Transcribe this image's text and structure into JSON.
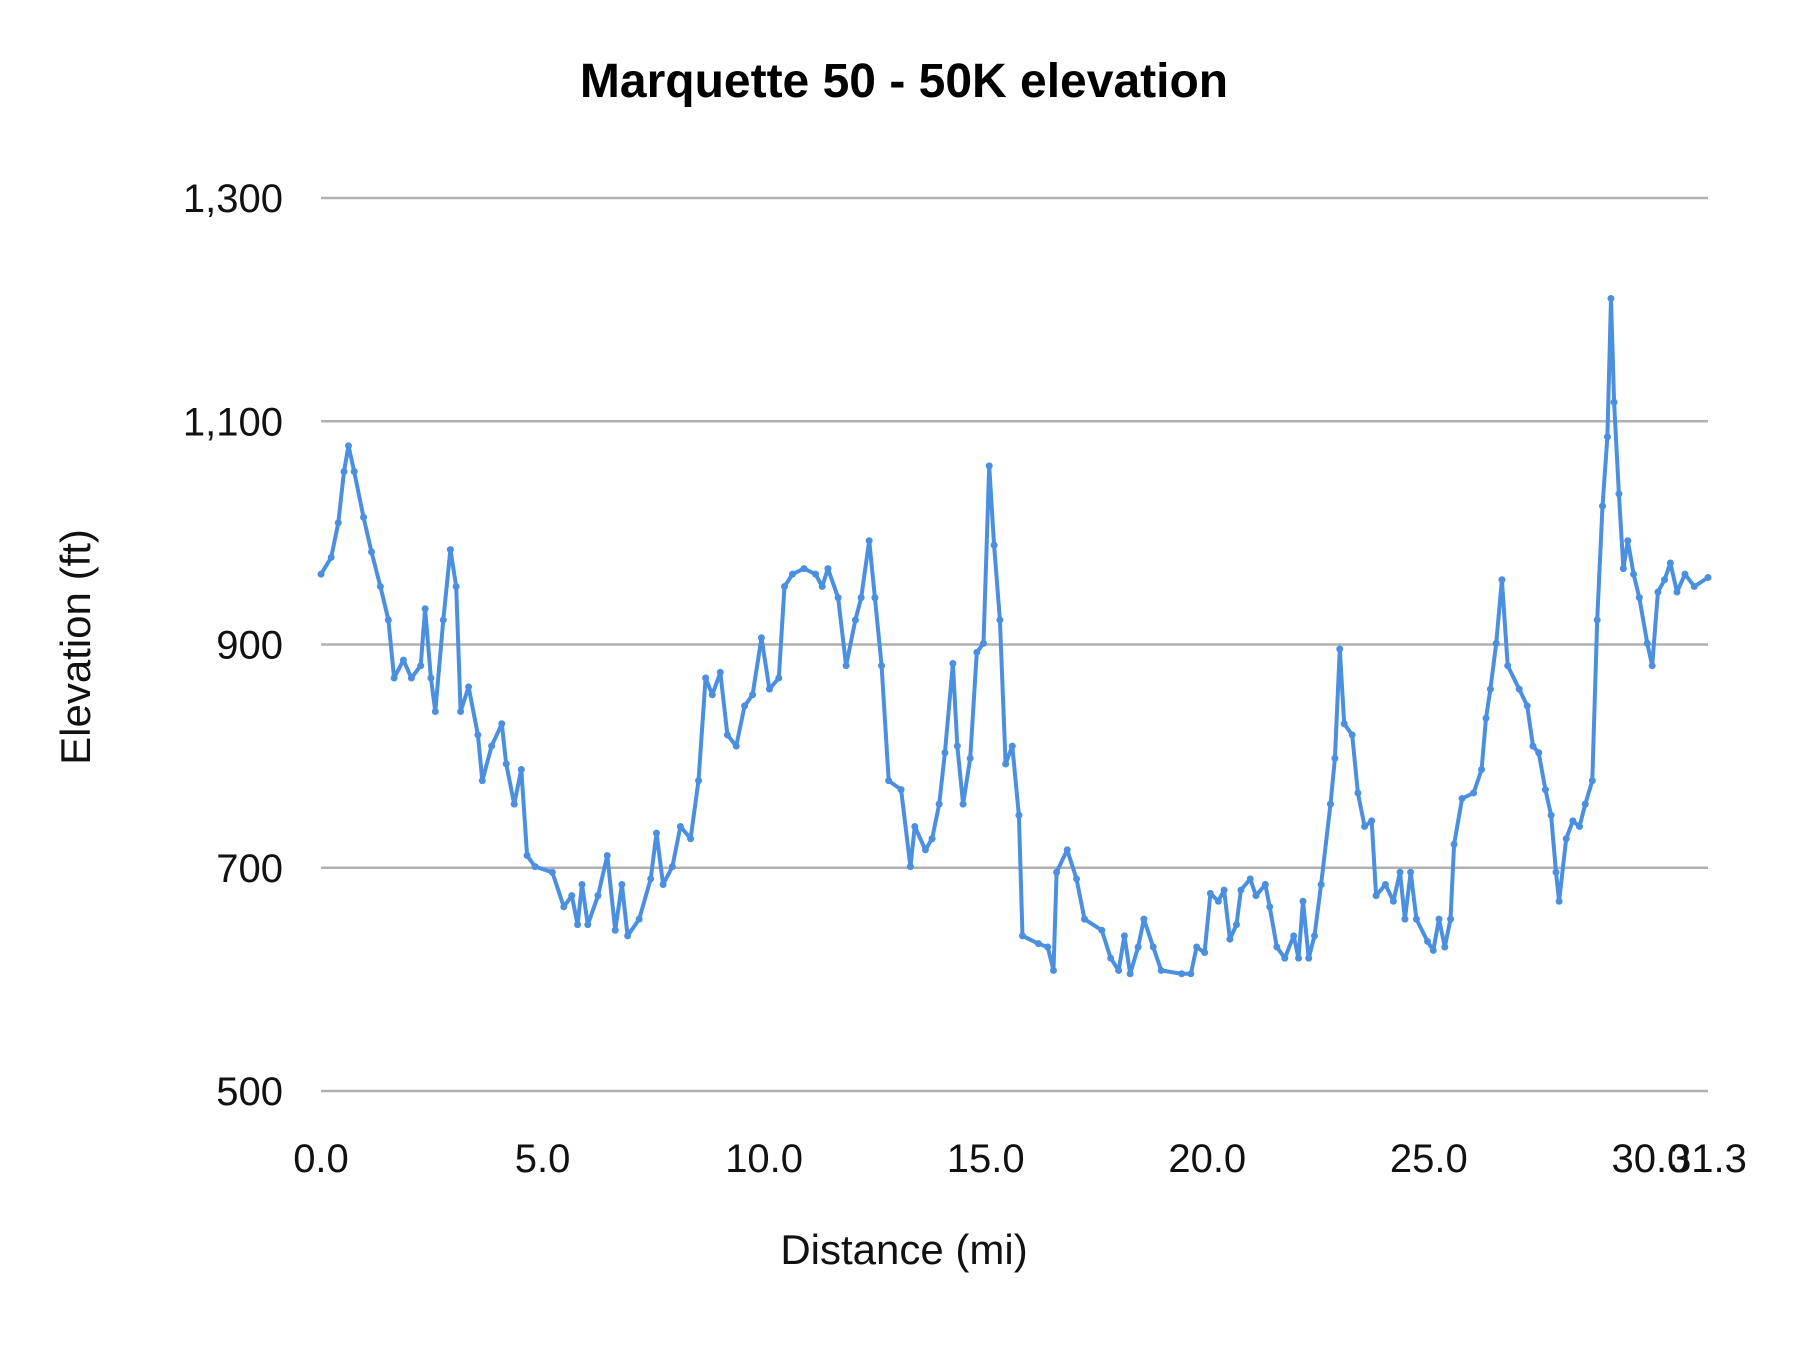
{
  "chart_data": {
    "type": "line",
    "title": "Marquette 50 - 50K elevation",
    "xlabel": "Distance (mi)",
    "ylabel": "Elevation (ft)",
    "xlim": [
      0,
      31.3
    ],
    "ylim": [
      500,
      1300
    ],
    "x_ticks": [
      "0.0",
      "5.0",
      "10.0",
      "15.0",
      "20.0",
      "25.0",
      "30.0",
      "31.3"
    ],
    "x_tick_values": [
      0,
      5,
      10,
      15,
      20,
      25,
      30,
      31.3
    ],
    "y_ticks": [
      "500",
      "700",
      "900",
      "1,100",
      "1,300"
    ],
    "y_tick_values": [
      500,
      700,
      900,
      1100,
      1300
    ],
    "grid": "horizontal",
    "legend": "none",
    "color": "#4a8fe0",
    "markers": true,
    "series": [
      {
        "x": [
          0,
          0.23,
          0.39,
          0.52,
          0.62,
          0.75,
          0.96,
          1.14,
          1.34,
          1.52,
          1.65,
          1.86,
          2.04,
          2.25,
          2.35,
          2.48,
          2.58,
          2.76,
          2.92,
          3.05,
          3.15,
          3.33,
          3.54,
          3.64,
          3.85,
          4.08,
          4.18,
          4.36,
          4.52,
          4.65,
          4.83,
          5.22,
          5.48,
          5.66,
          5.79,
          5.89,
          6.02,
          6.25,
          6.46,
          6.64,
          6.79,
          6.92,
          7.18,
          7.44,
          7.57,
          7.72,
          7.93,
          8.11,
          8.34,
          8.52,
          8.68,
          8.83,
          9.01,
          9.17,
          9.37,
          9.56,
          9.74,
          9.94,
          10.12,
          10.33,
          10.46,
          10.64,
          10.9,
          11.16,
          11.31,
          11.44,
          11.67,
          11.85,
          12.06,
          12.19,
          12.37,
          12.5,
          12.65,
          12.81,
          13.09,
          13.3,
          13.4,
          13.64,
          13.79,
          13.95,
          14.08,
          14.26,
          14.36,
          14.49,
          14.65,
          14.8,
          14.95,
          15.08,
          15.19,
          15.32,
          15.45,
          15.6,
          15.75,
          15.83,
          16.19,
          16.4,
          16.53,
          16.6,
          16.84,
          17.05,
          17.23,
          17.62,
          17.82,
          18.0,
          18.13,
          18.26,
          18.44,
          18.57,
          18.78,
          18.96,
          19.42,
          19.63,
          19.76,
          19.94,
          20.07,
          20.25,
          20.38,
          20.51,
          20.66,
          20.76,
          20.97,
          21.1,
          21.31,
          21.41,
          21.57,
          21.75,
          21.95,
          22.06,
          22.16,
          22.29,
          22.42,
          22.57,
          22.78,
          22.88,
          22.99,
          23.09,
          23.27,
          23.4,
          23.55,
          23.71,
          23.81,
          24.02,
          24.2,
          24.35,
          24.46,
          24.59,
          24.72,
          24.97,
          25.1,
          25.23,
          25.36,
          25.49,
          25.57,
          25.75,
          26.01,
          26.19,
          26.29,
          26.39,
          26.52,
          26.65,
          26.78,
          27.04,
          27.22,
          27.35,
          27.48,
          27.63,
          27.76,
          27.87,
          27.94,
          28.1,
          28.25,
          28.4,
          28.53,
          28.69,
          28.8,
          28.92,
          29.03,
          29.11,
          29.18,
          29.29,
          29.39,
          29.49,
          29.62,
          29.75,
          29.93,
          30.04,
          30.17,
          30.32,
          30.45,
          30.6,
          30.78,
          30.99,
          31.3
        ],
        "y": [
          963,
          978,
          1009,
          1055,
          1078,
          1055,
          1014,
          983,
          952,
          922,
          870,
          886,
          870,
          881,
          932,
          870,
          840,
          922,
          985,
          952,
          840,
          862,
          819,
          778,
          809,
          829,
          793,
          757,
          788,
          711,
          701,
          696,
          665,
          675,
          649,
          685,
          649,
          675,
          711,
          644,
          685,
          639,
          654,
          690,
          731,
          685,
          701,
          737,
          726,
          778,
          870,
          855,
          875,
          819,
          809,
          845,
          855,
          906,
          860,
          870,
          952,
          963,
          968,
          963,
          952,
          968,
          942,
          881,
          922,
          942,
          993,
          942,
          881,
          778,
          770,
          701,
          737,
          716,
          726,
          757,
          803,
          883,
          809,
          757,
          798,
          893,
          901,
          1060,
          989,
          922,
          793,
          809,
          747,
          639,
          632,
          629,
          608,
          696,
          716,
          690,
          654,
          644,
          619,
          608,
          639,
          605,
          629,
          654,
          629,
          608,
          605,
          605,
          629,
          624,
          677,
          670,
          680,
          636,
          649,
          680,
          690,
          675,
          685,
          665,
          629,
          619,
          639,
          619,
          670,
          619,
          639,
          685,
          757,
          798,
          896,
          829,
          819,
          767,
          737,
          742,
          675,
          685,
          670,
          696,
          654,
          696,
          654,
          634,
          626,
          654,
          629,
          654,
          721,
          762,
          767,
          788,
          834,
          860,
          901,
          958,
          881,
          860,
          845,
          809,
          803,
          770,
          747,
          696,
          670,
          726,
          742,
          737,
          757,
          778,
          922,
          1024,
          1086,
          1210,
          1117,
          1035,
          968,
          993,
          963,
          942,
          901,
          881,
          947,
          958,
          973,
          947,
          963,
          952,
          960
        ]
      }
    ]
  }
}
